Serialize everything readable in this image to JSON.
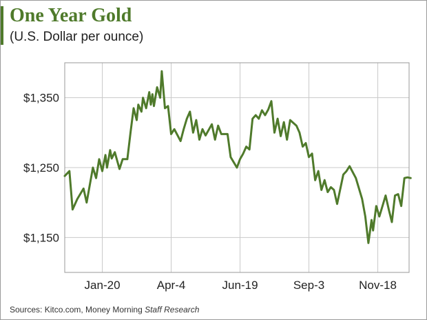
{
  "header": {
    "title": "One Year Gold",
    "subtitle": "(U.S. Dollar per ounce)"
  },
  "footer": {
    "source_prefix": "Sources: Kitco.com, Money Morning",
    "source_suffix": "Staff Research"
  },
  "colors": {
    "line": "#4f7a2b",
    "title": "#4f7a2b",
    "grid": "#c9c9c9"
  },
  "chart_data": {
    "type": "line",
    "title": "One Year Gold",
    "subtitle": "(U.S. Dollar per ounce)",
    "xlabel": "",
    "ylabel": "",
    "ylim": [
      1100,
      1400
    ],
    "y_ticks": [
      1150,
      1250,
      1350
    ],
    "y_tick_labels": [
      "$1,150",
      "$1,250",
      "$1,350"
    ],
    "x_tick_labels": [
      "Jan-20",
      "Apr-4",
      "Jun-19",
      "Sep-3",
      "Nov-18"
    ],
    "x_tick_index": [
      24,
      68,
      112,
      156,
      200
    ],
    "x_range": [
      0,
      220
    ],
    "grid": true,
    "legend": "none",
    "series": [
      {
        "x": [
          0,
          3,
          5,
          8,
          12,
          14,
          18,
          20,
          22,
          24,
          26,
          27,
          29,
          30,
          32,
          35,
          37,
          40,
          42,
          44,
          46,
          47,
          49,
          50,
          52,
          54,
          55,
          56,
          57,
          59,
          61,
          62,
          64,
          66,
          68,
          70,
          74,
          76,
          78,
          80,
          82,
          84,
          86,
          88,
          90,
          94,
          96,
          98,
          100,
          104,
          106,
          110,
          112,
          114,
          116,
          118,
          120,
          122,
          124,
          126,
          128,
          130,
          132,
          134,
          136,
          138,
          140,
          142,
          144,
          148,
          150,
          152,
          154,
          156,
          158,
          160,
          162,
          164,
          166,
          168,
          170,
          172,
          174,
          178,
          180,
          182,
          186,
          190,
          192,
          194,
          196,
          197,
          199,
          201,
          203,
          205,
          207,
          209,
          211,
          213,
          215,
          217,
          219,
          221
        ],
        "y": [
          1238,
          1245,
          1190,
          1205,
          1220,
          1200,
          1250,
          1235,
          1262,
          1245,
          1268,
          1250,
          1275,
          1263,
          1272,
          1248,
          1262,
          1262,
          1300,
          1335,
          1318,
          1340,
          1330,
          1350,
          1335,
          1358,
          1340,
          1355,
          1338,
          1365,
          1350,
          1388,
          1335,
          1338,
          1298,
          1305,
          1288,
          1305,
          1320,
          1330,
          1300,
          1318,
          1290,
          1305,
          1296,
          1312,
          1290,
          1310,
          1298,
          1298,
          1265,
          1250,
          1262,
          1270,
          1280,
          1276,
          1320,
          1325,
          1320,
          1332,
          1325,
          1333,
          1345,
          1300,
          1320,
          1295,
          1315,
          1290,
          1318,
          1310,
          1300,
          1280,
          1285,
          1265,
          1270,
          1232,
          1245,
          1218,
          1232,
          1215,
          1222,
          1218,
          1198,
          1240,
          1245,
          1252,
          1235,
          1205,
          1180,
          1142,
          1175,
          1160,
          1195,
          1180,
          1195,
          1210,
          1190,
          1172,
          1210,
          1212,
          1195,
          1235,
          1236,
          1235
        ]
      }
    ]
  }
}
